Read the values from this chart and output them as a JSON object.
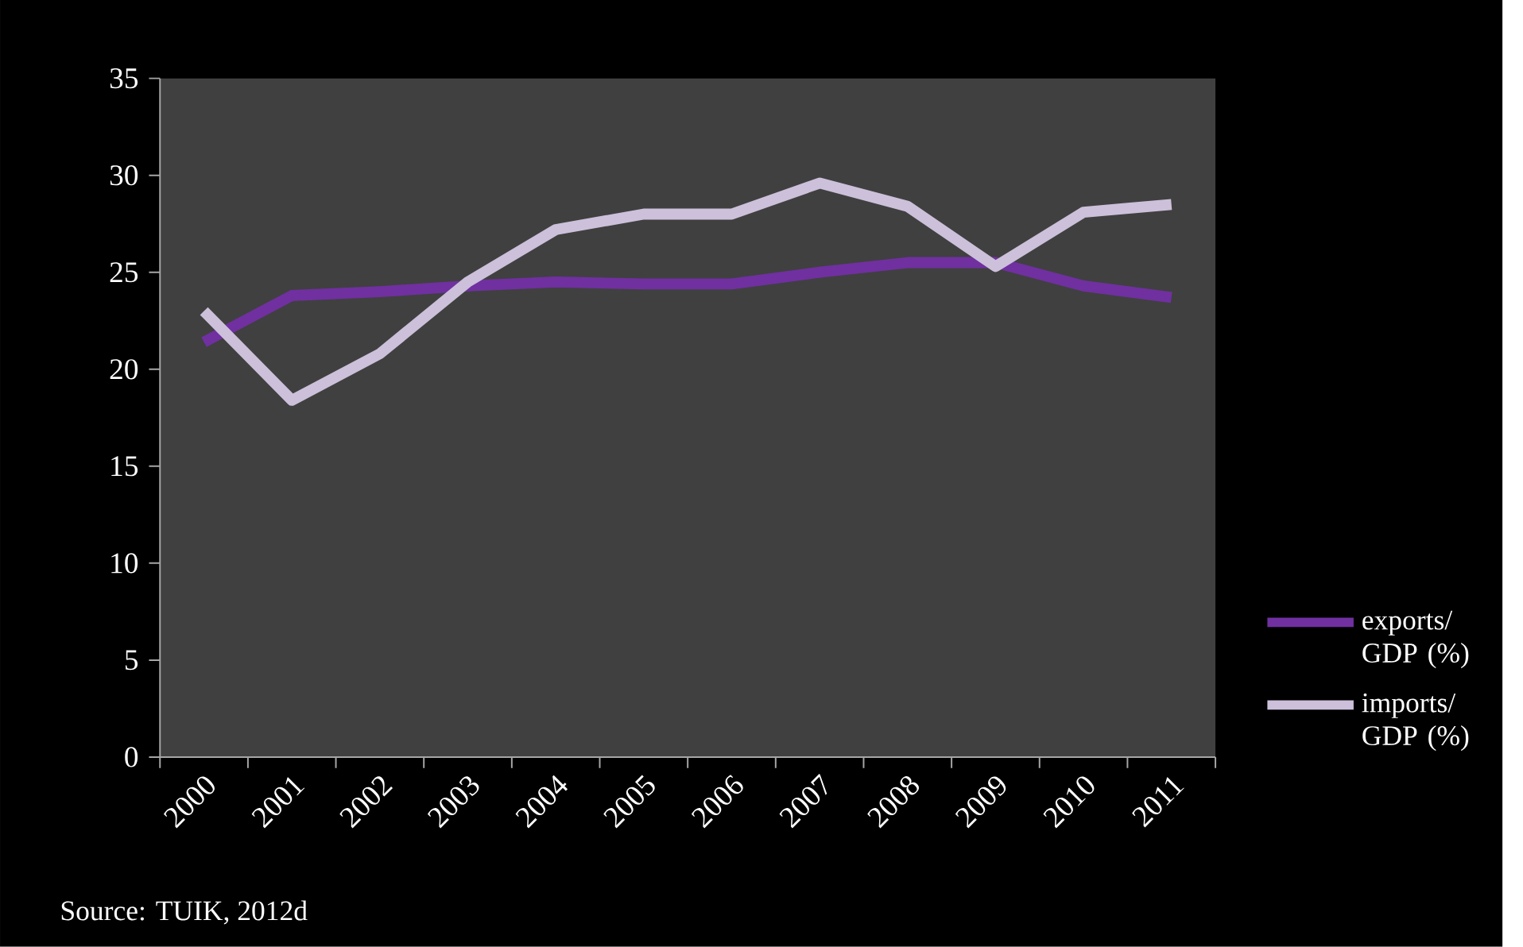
{
  "chart_data": {
    "type": "line",
    "categories": [
      "2000",
      "2001",
      "2002",
      "2003",
      "2004",
      "2005",
      "2006",
      "2007",
      "2008",
      "2009",
      "2010",
      "2011"
    ],
    "series": [
      {
        "name": "exports/ GDP (%)",
        "color": "#7030a0",
        "values": [
          21.4,
          23.8,
          24.0,
          24.3,
          24.5,
          24.4,
          24.4,
          25.0,
          25.5,
          25.5,
          24.3,
          23.7
        ]
      },
      {
        "name": "imports/ GDP (%)",
        "color": "#ccc0da",
        "values": [
          23.0,
          18.4,
          20.8,
          24.5,
          27.2,
          28.0,
          28.0,
          29.6,
          28.4,
          25.3,
          28.1,
          28.5
        ]
      }
    ],
    "ylim": [
      0,
      35
    ],
    "yticks": [
      0,
      5,
      10,
      15,
      20,
      25,
      30,
      35
    ],
    "grid": false,
    "legend": "right",
    "marker": "none",
    "line_style": "solid",
    "annotations": [
      "Source: TUIK, 2012d"
    ]
  }
}
